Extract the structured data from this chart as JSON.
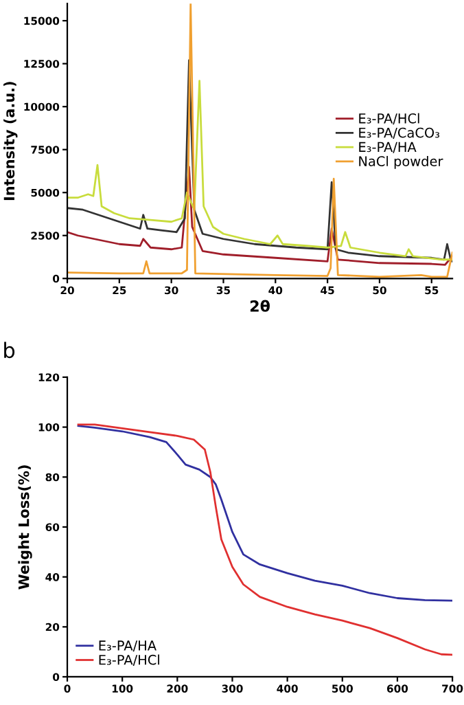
{
  "chart_data": [
    {
      "type": "line",
      "xlabel": "2θ",
      "ylabel": "Intensity (a.u.)",
      "xlim": [
        20,
        57
      ],
      "ylim": [
        0,
        16000
      ],
      "xticks": [
        20,
        25,
        30,
        35,
        40,
        45,
        50,
        55
      ],
      "yticks": [
        0,
        2500,
        5000,
        7500,
        10000,
        12500,
        15000
      ],
      "grid": false,
      "legend": "right",
      "marker": "none",
      "line_style": "solid",
      "series": [
        {
          "name": "E₃-PA/HCl",
          "color": "#a01e2a",
          "x": [
            20,
            21,
            25,
            27,
            27.3,
            28,
            30,
            31,
            31.7,
            32.0,
            33,
            35,
            40,
            45,
            45.4,
            46,
            50,
            55,
            56.3,
            57
          ],
          "values": [
            2700,
            2500,
            2000,
            1900,
            2300,
            1800,
            1700,
            1800,
            6500,
            3000,
            1600,
            1400,
            1200,
            1000,
            2900,
            1100,
            900,
            850,
            800,
            1300
          ]
        },
        {
          "name": "E₃-PA/CaCO₃",
          "color": "#333333",
          "x": [
            20,
            21.5,
            24,
            26.5,
            27,
            27.3,
            27.7,
            29,
            30.5,
            31.3,
            31.7,
            32.2,
            33,
            35,
            38,
            42,
            45,
            45.4,
            45.8,
            47,
            50,
            55,
            56.2,
            56.5,
            56.8,
            57
          ],
          "values": [
            4100,
            4000,
            3500,
            3000,
            2900,
            3700,
            2900,
            2800,
            2700,
            3500,
            12700,
            4000,
            2600,
            2300,
            2000,
            1800,
            1700,
            5600,
            1700,
            1500,
            1300,
            1200,
            1100,
            2000,
            1200,
            1000
          ]
        },
        {
          "name": "E₃-PA/HA",
          "color": "#c8dc3c",
          "x": [
            20,
            21,
            22,
            22.5,
            22.9,
            23.3,
            24.5,
            26,
            28,
            30,
            31,
            31.5,
            32.2,
            32.7,
            33.1,
            34,
            35,
            37,
            39.5,
            40.2,
            40.7,
            43,
            45,
            46.3,
            46.7,
            47.2,
            50,
            52.5,
            52.8,
            53.2,
            56,
            57
          ],
          "values": [
            4700,
            4700,
            4900,
            4800,
            6600,
            4200,
            3800,
            3500,
            3400,
            3300,
            3500,
            5000,
            4000,
            11500,
            4200,
            3000,
            2600,
            2300,
            2000,
            2500,
            2000,
            1900,
            1800,
            1900,
            2700,
            1800,
            1500,
            1300,
            1700,
            1300,
            1100,
            1100
          ]
        },
        {
          "name": "NaCl powder",
          "color": "#f0a030",
          "x": [
            20,
            25,
            27.3,
            27.6,
            27.9,
            31,
            31.5,
            31.85,
            32.3,
            40,
            45,
            45.3,
            45.6,
            46,
            50,
            54,
            55,
            56.5,
            57
          ],
          "values": [
            350,
            300,
            300,
            1000,
            300,
            300,
            500,
            16000,
            300,
            200,
            150,
            600,
            5800,
            200,
            100,
            200,
            100,
            100,
            1500
          ]
        }
      ]
    },
    {
      "type": "line",
      "ylabel": "Weight Loss(%)",
      "annotations": [
        "b"
      ],
      "xlim": [
        0,
        700
      ],
      "ylim": [
        0,
        120
      ],
      "xticks": [
        0,
        100,
        200,
        300,
        400,
        500,
        600,
        700
      ],
      "yticks": [
        0,
        20,
        40,
        60,
        80,
        100,
        120
      ],
      "grid": false,
      "legend": "bottom left",
      "marker": "none",
      "line_style": "solid",
      "series": [
        {
          "name": "E₃-PA/HA",
          "color": "#3030a0",
          "x": [
            20,
            50,
            100,
            150,
            180,
            200,
            215,
            240,
            260,
            270,
            280,
            300,
            320,
            350,
            400,
            450,
            500,
            550,
            600,
            650,
            700
          ],
          "values": [
            100.5,
            99.8,
            98.3,
            96,
            94,
            89,
            85,
            83,
            80,
            77,
            71,
            58,
            49,
            45,
            41.5,
            38.5,
            36.5,
            33.5,
            31.5,
            30.7,
            30.5
          ]
        },
        {
          "name": "E₃-PA/HCl",
          "color": "#e03030",
          "x": [
            20,
            50,
            100,
            150,
            200,
            230,
            250,
            260,
            270,
            280,
            300,
            320,
            350,
            400,
            450,
            500,
            550,
            600,
            650,
            680,
            700
          ],
          "values": [
            101,
            101,
            99.5,
            98,
            96.5,
            95,
            91,
            82,
            68,
            55,
            44,
            37,
            32,
            28,
            25,
            22.5,
            19.5,
            15.5,
            11,
            9,
            8.8
          ]
        }
      ]
    }
  ]
}
